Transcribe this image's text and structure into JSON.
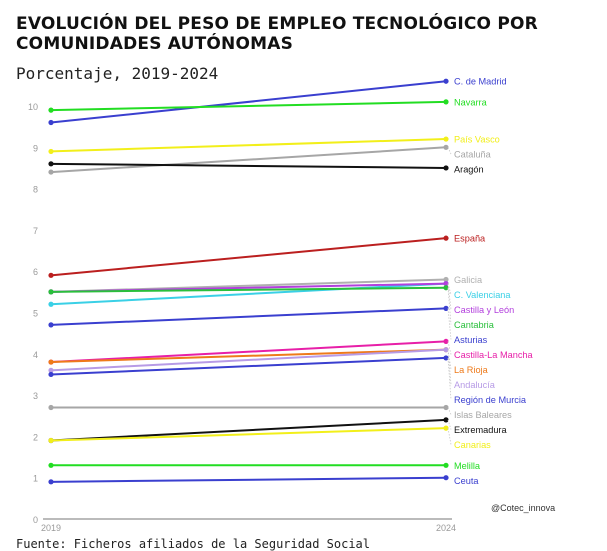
{
  "chart_data": {
    "type": "line",
    "title": "EVOLUCIÓN DEL PESO DE EMPLEO TECNOLÓGICO POR COMUNIDADES AUTÓNOMAS",
    "subtitle": "Porcentaje, 2019-2024",
    "x": [
      "2019",
      "2024"
    ],
    "ylim": [
      0,
      11
    ],
    "yticks": [
      0,
      1,
      2,
      3,
      4,
      5,
      6,
      7,
      8,
      9,
      10
    ],
    "grid": false,
    "series": [
      {
        "name": "C. de Madrid",
        "values": [
          9.6,
          10.6
        ],
        "color": "#3a3fcf"
      },
      {
        "name": "Navarra",
        "values": [
          9.9,
          10.1
        ],
        "color": "#22dd22"
      },
      {
        "name": "País Vasco",
        "values": [
          8.9,
          9.2
        ],
        "color": "#f2ef1a"
      },
      {
        "name": "Cataluña",
        "values": [
          8.4,
          9.0
        ],
        "color": "#a6a6a6"
      },
      {
        "name": "Aragón",
        "values": [
          8.6,
          8.5
        ],
        "color": "#111111"
      },
      {
        "name": "España",
        "values": [
          5.9,
          6.8
        ],
        "color": "#bb1f1f"
      },
      {
        "name": "Galicia",
        "values": [
          5.5,
          5.8
        ],
        "color": "#b0b0b0"
      },
      {
        "name": "C. Valenciana",
        "values": [
          5.2,
          5.7
        ],
        "color": "#3ad0e6"
      },
      {
        "name": "Castilla y León",
        "values": [
          5.5,
          5.7
        ],
        "color": "#b23fdd"
      },
      {
        "name": "Cantabria",
        "values": [
          5.5,
          5.6
        ],
        "color": "#2abf3c"
      },
      {
        "name": "Asturias",
        "values": [
          4.7,
          5.1
        ],
        "color": "#3a3fcf"
      },
      {
        "name": "Castilla-La Mancha",
        "values": [
          3.8,
          4.3
        ],
        "color": "#e71fa8"
      },
      {
        "name": "La Rioja",
        "values": [
          3.8,
          4.1
        ],
        "color": "#ee7a1a"
      },
      {
        "name": "Andalucía",
        "values": [
          3.6,
          4.1
        ],
        "color": "#b79be6"
      },
      {
        "name": "Región de Murcia",
        "values": [
          3.5,
          3.9
        ],
        "color": "#3a3fcf"
      },
      {
        "name": "Islas Baleares",
        "values": [
          2.7,
          2.7
        ],
        "color": "#a6a6a6"
      },
      {
        "name": "Extremadura",
        "values": [
          1.9,
          2.4
        ],
        "color": "#111111"
      },
      {
        "name": "Canarias",
        "values": [
          1.9,
          2.2
        ],
        "color": "#f2ef1a"
      },
      {
        "name": "Melilla",
        "values": [
          1.3,
          1.3
        ],
        "color": "#22dd22"
      },
      {
        "name": "Ceuta",
        "values": [
          0.9,
          1.0
        ],
        "color": "#3a3fcf"
      }
    ]
  },
  "credit": "@Cotec_innova",
  "source": "Fuente: Ficheros afiliados de la Seguridad Social"
}
